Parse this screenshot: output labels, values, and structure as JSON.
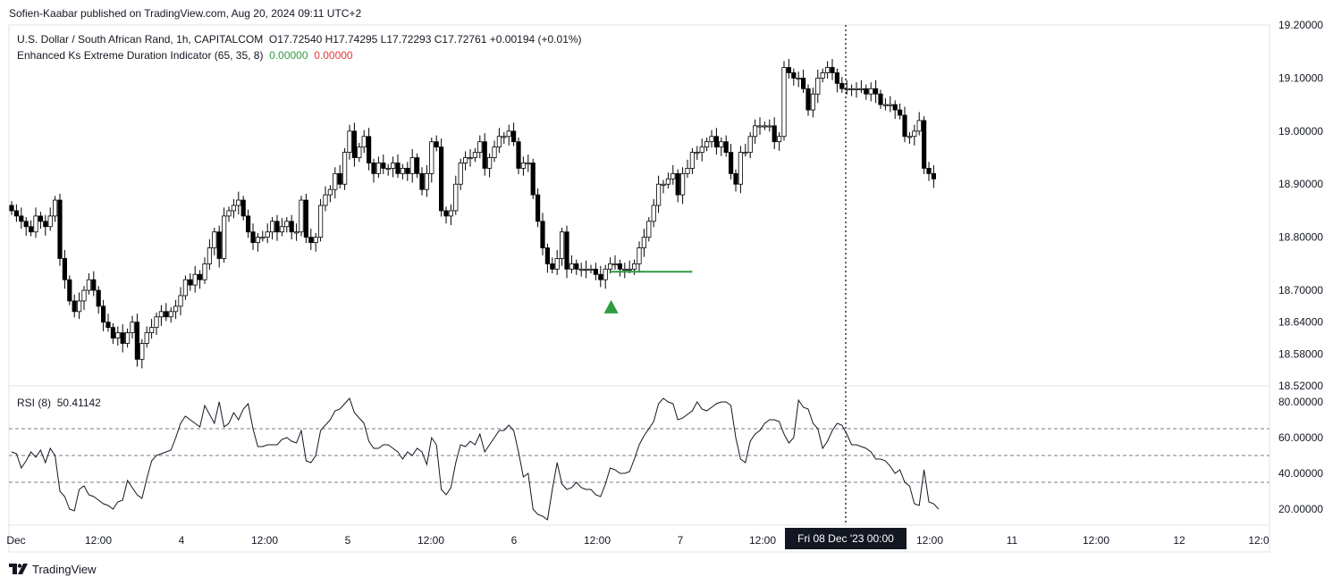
{
  "publisher": "Sofien-Kaabar published on TradingView.com, Aug 20, 2024 09:11 UTC+2",
  "symbol_line": {
    "name": "U.S. Dollar / South African Rand, 1h, CAPITALCOM",
    "ohlc": "O17.72540  H17.74295  L17.72293  C17.72761  +0.00194 (+0.01%)"
  },
  "indicator_line": {
    "name": "Enhanced Ks Extreme Duration Indicator (65, 35, 8)",
    "v1": "0.00000",
    "v2": "0.00000"
  },
  "rsi_label": {
    "name": "RSI (8)",
    "value": "50.41142"
  },
  "crosshair_label": "Fri 08 Dec '23   00:00",
  "brand": "TradingView",
  "colors": {
    "up_fill": "#ffffff",
    "down_fill": "#000000",
    "signal": "#2e9b3e",
    "rsi_line": "#131722",
    "level_line": "#787b86"
  },
  "chart_data": [
    {
      "type": "candlestick",
      "title": "U.S. Dollar / South African Rand, 1h, CAPITALCOM",
      "price_ticks": [
        "19.20000",
        "19.10000",
        "19.00000",
        "18.90000",
        "18.80000",
        "18.70000",
        "18.64000",
        "18.58000",
        "18.52000"
      ],
      "x_ticks": [
        "Dec",
        "12:00",
        "4",
        "12:00",
        "5",
        "12:00",
        "6",
        "12:00",
        "7",
        "12:00",
        "12:00",
        "11",
        "12:00",
        "12",
        "12:0"
      ],
      "ylim": [
        18.52,
        19.2
      ],
      "close": [
        18.85,
        18.84,
        18.83,
        18.82,
        18.81,
        18.84,
        18.83,
        18.82,
        18.84,
        18.87,
        18.76,
        18.72,
        18.68,
        18.66,
        18.68,
        18.7,
        18.72,
        18.7,
        18.67,
        18.64,
        18.63,
        18.61,
        18.62,
        18.6,
        18.62,
        18.64,
        18.57,
        18.6,
        18.62,
        18.63,
        18.65,
        18.66,
        18.65,
        18.66,
        18.67,
        18.69,
        18.72,
        18.71,
        18.73,
        18.72,
        18.75,
        18.78,
        18.81,
        18.76,
        18.84,
        18.85,
        18.86,
        18.87,
        18.84,
        18.81,
        18.79,
        18.8,
        18.8,
        18.81,
        18.83,
        18.81,
        18.82,
        18.83,
        18.81,
        18.81,
        18.87,
        18.8,
        18.79,
        18.8,
        18.86,
        18.88,
        18.89,
        18.92,
        18.9,
        18.96,
        19.0,
        18.95,
        18.97,
        18.99,
        18.94,
        18.92,
        18.94,
        18.93,
        18.93,
        18.94,
        18.92,
        18.93,
        18.92,
        18.95,
        18.92,
        18.89,
        18.92,
        18.98,
        18.97,
        18.85,
        18.84,
        18.85,
        18.9,
        18.94,
        18.95,
        18.95,
        18.96,
        18.98,
        18.93,
        18.95,
        18.97,
        18.99,
        18.99,
        19.0,
        18.98,
        18.93,
        18.94,
        18.94,
        18.88,
        18.83,
        18.78,
        18.75,
        18.74,
        18.76,
        18.81,
        18.74,
        18.75,
        18.74,
        18.74,
        18.74,
        18.74,
        18.73,
        18.72,
        18.74,
        18.75,
        18.75,
        18.74,
        18.74,
        18.74,
        18.75,
        18.78,
        18.8,
        18.83,
        18.86,
        18.9,
        18.9,
        18.91,
        18.92,
        18.88,
        18.92,
        18.93,
        18.96,
        18.96,
        18.97,
        18.98,
        18.99,
        18.97,
        18.98,
        18.96,
        18.92,
        18.9,
        18.96,
        18.96,
        18.99,
        19.01,
        19.01,
        19.01,
        19.01,
        18.98,
        18.99,
        19.12,
        19.11,
        19.1,
        19.1,
        19.08,
        19.04,
        19.07,
        19.1,
        19.11,
        19.12,
        19.11,
        19.09,
        19.08,
        19.08,
        19.08,
        19.08,
        19.08,
        19.07,
        19.08,
        19.07,
        19.05,
        19.05,
        19.05,
        19.04,
        19.03,
        18.99,
        18.99,
        19.0,
        19.02,
        18.93,
        18.92,
        18.91
      ],
      "signal": {
        "type": "bullish-extreme",
        "bar": 124,
        "level": 18.735,
        "extend_to_bar": 141
      }
    },
    {
      "type": "line",
      "title": "RSI (8)",
      "y_ticks": [
        "80.00000",
        "60.00000",
        "40.00000",
        "20.00000"
      ],
      "ylim": [
        15,
        85
      ],
      "levels": [
        65,
        50,
        35
      ],
      "values": [
        52,
        51,
        43,
        47,
        52,
        49,
        53,
        46,
        54,
        50,
        30,
        27,
        20,
        19,
        31,
        33,
        28,
        27,
        25,
        23,
        22,
        20,
        24,
        25,
        36,
        32,
        28,
        26,
        37,
        47,
        50,
        51,
        52,
        53,
        60,
        68,
        72,
        70,
        68,
        66,
        78,
        73,
        68,
        80,
        66,
        68,
        74,
        70,
        76,
        79,
        65,
        55,
        55,
        56,
        56,
        56,
        59,
        60,
        58,
        57,
        64,
        47,
        46,
        50,
        64,
        67,
        70,
        75,
        76,
        79,
        82,
        74,
        71,
        68,
        58,
        54,
        54,
        56,
        56,
        54,
        52,
        48,
        52,
        50,
        54,
        52,
        45,
        60,
        56,
        31,
        28,
        32,
        46,
        56,
        55,
        58,
        56,
        62,
        52,
        56,
        60,
        64,
        64,
        67,
        64,
        52,
        38,
        40,
        20,
        17,
        16,
        14,
        31,
        46,
        34,
        31,
        32,
        35,
        32,
        31,
        31,
        28,
        27,
        34,
        43,
        42,
        40,
        40,
        41,
        48,
        56,
        61,
        65,
        69,
        79,
        82,
        80,
        79,
        70,
        71,
        73,
        75,
        80,
        76,
        75,
        77,
        79,
        80,
        80,
        78,
        60,
        48,
        46,
        58,
        62,
        64,
        68,
        70,
        70,
        69,
        62,
        57,
        60,
        81,
        77,
        76,
        68,
        65,
        54,
        58,
        64,
        68,
        67,
        62,
        56,
        56,
        55,
        54,
        52,
        48,
        48,
        47,
        44,
        40,
        42,
        35,
        33,
        23,
        22,
        42,
        24,
        23,
        20
      ]
    }
  ]
}
